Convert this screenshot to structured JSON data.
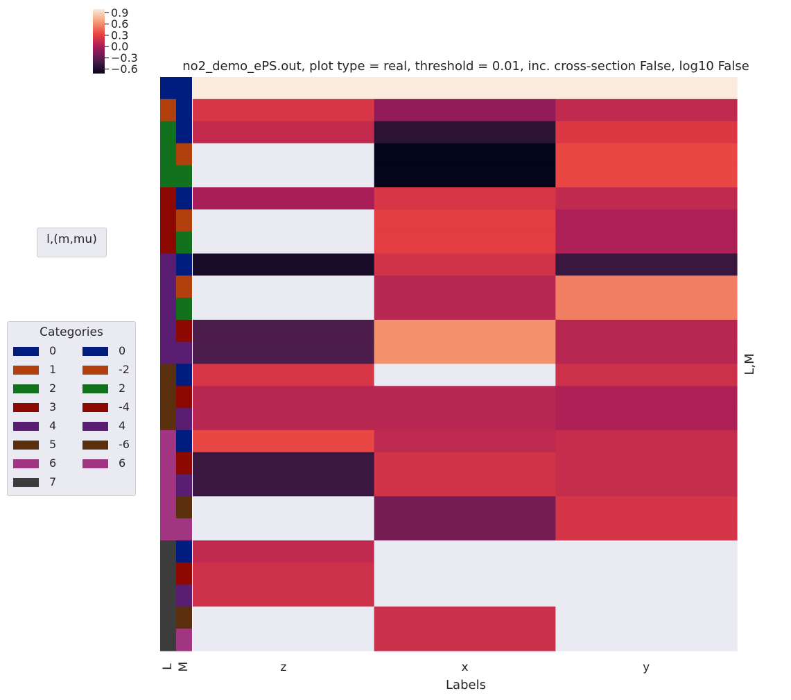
{
  "chart_data": {
    "type": "heatmap",
    "title": "no2_demo_ePS.out, plot type = real, threshold = 0.01, inc. cross-section False, log10 False",
    "xlabel": "Labels",
    "ylabel_right": "L,M",
    "columns": [
      "z",
      "x",
      "y"
    ],
    "row_colors_labels": [
      "L",
      "M"
    ],
    "colorbar": {
      "ticks": [
        0.9,
        0.6,
        0.3,
        0.0,
        -0.3,
        -0.6
      ],
      "tick_labels": [
        "0.9",
        "0.6",
        "0.3",
        "0.0",
        "−0.3",
        "−0.6"
      ],
      "vmin": -0.72,
      "vmax": 1.0
    },
    "rows": [
      {
        "L": 0,
        "M": 0,
        "values": [
          1.0,
          1.0,
          1.0
        ]
      },
      {
        "L": 1,
        "M": 0,
        "values": [
          0.23,
          -0.1,
          0.12
        ]
      },
      {
        "L": 2,
        "M": 0,
        "values": [
          0.13,
          -0.52,
          0.25
        ]
      },
      {
        "L": 2,
        "M": -2,
        "values": [
          null,
          -0.72,
          0.34
        ]
      },
      {
        "L": 2,
        "M": 2,
        "values": [
          null,
          -0.72,
          0.34
        ]
      },
      {
        "L": 3,
        "M": 0,
        "values": [
          0.0,
          0.23,
          0.12
        ]
      },
      {
        "L": 3,
        "M": -2,
        "values": [
          null,
          0.29,
          0.03
        ]
      },
      {
        "L": 3,
        "M": 2,
        "values": [
          null,
          0.29,
          0.03
        ]
      },
      {
        "L": 4,
        "M": 0,
        "values": [
          -0.62,
          0.2,
          -0.46
        ]
      },
      {
        "L": 4,
        "M": -2,
        "values": [
          null,
          0.08,
          0.55
        ]
      },
      {
        "L": 4,
        "M": 2,
        "values": [
          null,
          0.08,
          0.55
        ]
      },
      {
        "L": 4,
        "M": -4,
        "values": [
          -0.37,
          0.62,
          0.08
        ]
      },
      {
        "L": 4,
        "M": 4,
        "values": [
          -0.37,
          0.62,
          0.08
        ]
      },
      {
        "L": 5,
        "M": 0,
        "values": [
          0.23,
          null,
          0.18
        ]
      },
      {
        "L": 5,
        "M": -4,
        "values": [
          0.08,
          0.08,
          0.03
        ]
      },
      {
        "L": 5,
        "M": 4,
        "values": [
          0.08,
          0.08,
          0.03
        ]
      },
      {
        "L": 6,
        "M": 0,
        "values": [
          0.34,
          0.11,
          0.14
        ]
      },
      {
        "L": 6,
        "M": -4,
        "values": [
          -0.46,
          0.2,
          0.14
        ]
      },
      {
        "L": 6,
        "M": 4,
        "values": [
          -0.46,
          0.2,
          0.14
        ]
      },
      {
        "L": 6,
        "M": -6,
        "values": [
          null,
          -0.21,
          0.21
        ]
      },
      {
        "L": 6,
        "M": 6,
        "values": [
          null,
          -0.21,
          0.21
        ]
      },
      {
        "L": 7,
        "M": 0,
        "values": [
          0.12,
          null,
          null
        ]
      },
      {
        "L": 7,
        "M": -4,
        "values": [
          0.18,
          null,
          null
        ]
      },
      {
        "L": 7,
        "M": 4,
        "values": [
          0.18,
          null,
          null
        ]
      },
      {
        "L": 7,
        "M": -6,
        "values": [
          null,
          0.17,
          null
        ]
      },
      {
        "L": 7,
        "M": 6,
        "values": [
          null,
          0.17,
          null
        ]
      }
    ],
    "palette_L": {
      "0": "#001c7f",
      "1": "#b1400d",
      "2": "#12711c",
      "3": "#8c0800",
      "4": "#591e71",
      "5": "#592f0d",
      "6": "#a23582",
      "7": "#3c3c3c"
    },
    "palette_M": {
      "0": "#001c7f",
      "-2": "#b1400d",
      "2": "#12711c",
      "-4": "#8c0800",
      "4": "#591e71",
      "-6": "#592f0d",
      "6": "#a23582"
    },
    "missing_color": "#eaeaf2"
  },
  "legends": {
    "lmu_title": "l,(m,mu)",
    "categories_title": "Categories",
    "col1": [
      {
        "label": "0",
        "color": "#001c7f"
      },
      {
        "label": "1",
        "color": "#b1400d"
      },
      {
        "label": "2",
        "color": "#12711c"
      },
      {
        "label": "3",
        "color": "#8c0800"
      },
      {
        "label": "4",
        "color": "#591e71"
      },
      {
        "label": "5",
        "color": "#592f0d"
      },
      {
        "label": "6",
        "color": "#a23582"
      },
      {
        "label": "7",
        "color": "#3c3c3c"
      }
    ],
    "col2": [
      {
        "label": "0",
        "color": "#001c7f"
      },
      {
        "label": "-2",
        "color": "#b1400d"
      },
      {
        "label": "2",
        "color": "#12711c"
      },
      {
        "label": "-4",
        "color": "#8c0800"
      },
      {
        "label": "4",
        "color": "#591e71"
      },
      {
        "label": "-6",
        "color": "#592f0d"
      },
      {
        "label": "6",
        "color": "#a23582"
      }
    ]
  }
}
